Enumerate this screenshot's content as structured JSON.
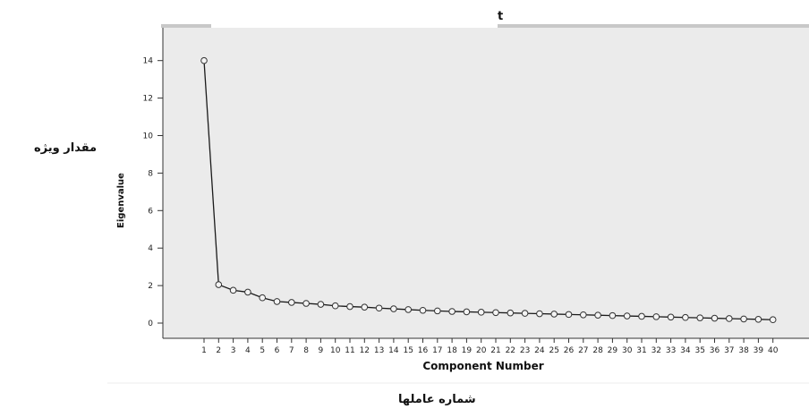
{
  "header_fragment": "t",
  "side_label": "مقدار ويژه",
  "bottom_label": "شماره عاملها",
  "chart_data": {
    "type": "line",
    "title": "",
    "xlabel": "Component Number",
    "ylabel": "Eigenvalue",
    "ylim": [
      0,
      15
    ],
    "yticks": [
      0,
      2,
      4,
      6,
      8,
      10,
      12,
      14
    ],
    "x": [
      1,
      2,
      3,
      4,
      5,
      6,
      7,
      8,
      9,
      10,
      11,
      12,
      13,
      14,
      15,
      16,
      17,
      18,
      19,
      20,
      21,
      22,
      23,
      24,
      25,
      26,
      27,
      28,
      29,
      30,
      31,
      32,
      33,
      34,
      35,
      36,
      37,
      38,
      39,
      40
    ],
    "series": [
      {
        "values": [
          14.0,
          2.05,
          1.75,
          1.65,
          1.35,
          1.15,
          1.1,
          1.05,
          1.0,
          0.92,
          0.88,
          0.85,
          0.8,
          0.76,
          0.72,
          0.68,
          0.65,
          0.62,
          0.6,
          0.58,
          0.56,
          0.54,
          0.52,
          0.5,
          0.48,
          0.46,
          0.44,
          0.42,
          0.4,
          0.38,
          0.36,
          0.34,
          0.32,
          0.3,
          0.28,
          0.26,
          0.24,
          0.22,
          0.2,
          0.18
        ]
      }
    ],
    "plot_background": "#ebebeb",
    "line_color": "#1a1a1a",
    "marker": "circle",
    "grid": false
  }
}
